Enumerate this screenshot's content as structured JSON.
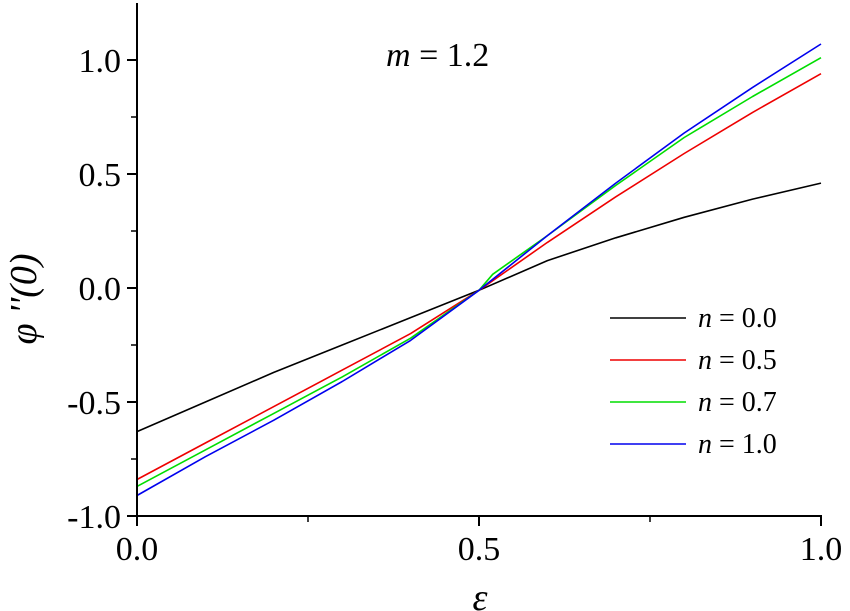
{
  "chart_data": {
    "type": "line",
    "annotation": {
      "var": "m",
      "eq": " = 1.2"
    },
    "xlabel": "ε",
    "ylabel": "φ ''(0)",
    "xlim": [
      0.0,
      1.0
    ],
    "ylim": [
      -1.0,
      1.25
    ],
    "x_ticks": [
      "0.0",
      "0.5",
      "1.0"
    ],
    "y_ticks": [
      "-1.0",
      "-0.5",
      "0.0",
      "0.5",
      "1.0"
    ],
    "legend_position": "bottom-right",
    "series": [
      {
        "name": "n = 0.0",
        "legend_var": "n",
        "legend_eq": " = 0.0",
        "color": "#000000",
        "x": [
          0.0,
          0.1,
          0.2,
          0.3,
          0.4,
          0.5,
          0.6,
          0.7,
          0.8,
          0.9,
          1.0
        ],
        "y": [
          -0.63,
          -0.5,
          -0.37,
          -0.25,
          -0.13,
          -0.01,
          0.12,
          0.22,
          0.31,
          0.39,
          0.46
        ]
      },
      {
        "name": "n = 0.5",
        "legend_var": "n",
        "legend_eq": " = 0.5",
        "color": "#ee0000",
        "x": [
          0.0,
          0.1,
          0.2,
          0.3,
          0.4,
          0.5,
          0.6,
          0.7,
          0.8,
          0.9,
          1.0
        ],
        "y": [
          -0.84,
          -0.68,
          -0.52,
          -0.36,
          -0.2,
          -0.01,
          0.2,
          0.4,
          0.59,
          0.77,
          0.94
        ]
      },
      {
        "name": "n = 0.7",
        "legend_var": "n",
        "legend_eq": " = 0.7",
        "color": "#00dd00",
        "x": [
          0.0,
          0.1,
          0.2,
          0.3,
          0.4,
          0.5,
          0.52,
          0.6,
          0.7,
          0.8,
          0.9,
          1.0
        ],
        "y": [
          -0.87,
          -0.71,
          -0.55,
          -0.39,
          -0.22,
          -0.01,
          0.06,
          0.23,
          0.45,
          0.66,
          0.84,
          1.01
        ]
      },
      {
        "name": "n = 1.0",
        "legend_var": "n",
        "legend_eq": " = 1.0",
        "color": "#0000ee",
        "x": [
          0.0,
          0.1,
          0.2,
          0.3,
          0.4,
          0.5,
          0.6,
          0.7,
          0.8,
          0.9,
          1.0
        ],
        "y": [
          -0.91,
          -0.74,
          -0.58,
          -0.41,
          -0.23,
          -0.01,
          0.23,
          0.46,
          0.68,
          0.88,
          1.07
        ]
      }
    ]
  }
}
